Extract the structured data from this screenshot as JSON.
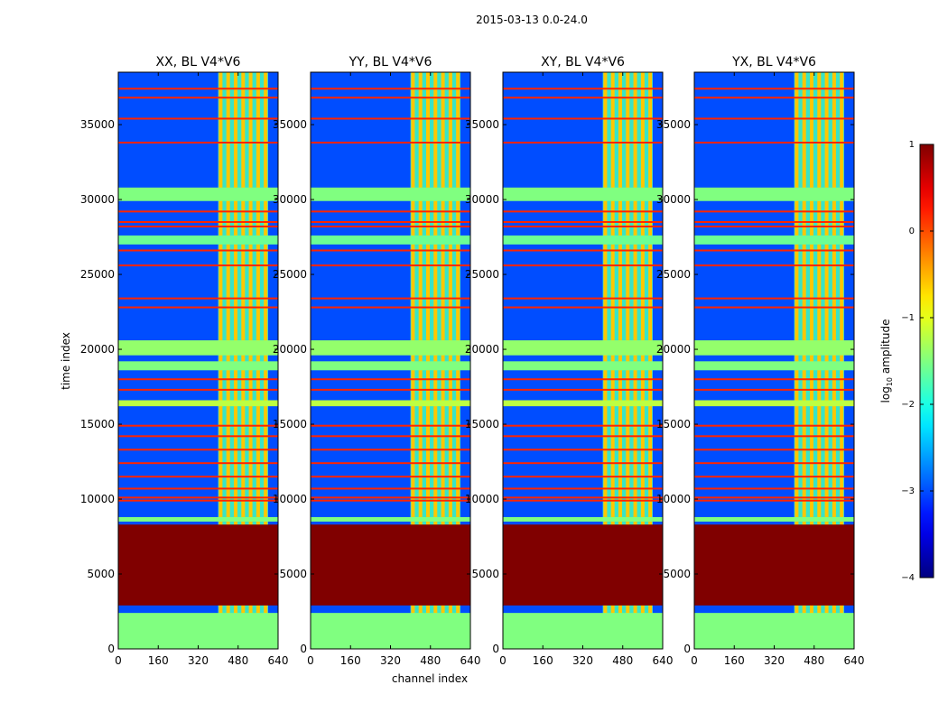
{
  "chart_data": {
    "type": "heatmap",
    "suptitle": "2015-03-13 0.0-24.0",
    "xlabel": "channel index",
    "ylabel": "time index",
    "colorbar_label": "log10 amplitude",
    "colorbar_label_base": "log",
    "colorbar_label_sub": "10",
    "colorbar_label_rest": " amplitude",
    "colormap": "jet",
    "xlim": [
      0,
      640
    ],
    "ylim": [
      0,
      38500
    ],
    "clim": [
      -4,
      1
    ],
    "xticks": [
      0,
      160,
      320,
      480,
      640
    ],
    "yticks": [
      0,
      5000,
      10000,
      15000,
      20000,
      25000,
      30000,
      35000
    ],
    "cbticks": [
      1,
      0,
      -1,
      -2,
      -3,
      -4
    ],
    "cbtick_labels": [
      "1",
      "0",
      "−1",
      "−2",
      "−3",
      "−4"
    ],
    "panels": [
      {
        "title": "XX, BL V4*V6",
        "pol": "XX"
      },
      {
        "title": "YY, BL V4*V6",
        "pol": "YY"
      },
      {
        "title": "XY, BL V4*V6",
        "pol": "XY"
      },
      {
        "title": "YX, BL V4*V6",
        "pol": "YX"
      }
    ],
    "background_level": -3,
    "saturated_block": {
      "time_range": [
        2900,
        8300
      ],
      "value": 1
    },
    "flagged_block_bottom": {
      "time_range": [
        0,
        2400
      ],
      "value": -1.5
    },
    "flagged_rows": [
      {
        "time_range": [
          8500,
          8800
        ],
        "value": -1.5
      },
      {
        "time_range": [
          16200,
          16600
        ],
        "value": -1.2
      },
      {
        "time_range": [
          18600,
          19200
        ],
        "value": -1.5
      },
      {
        "time_range": [
          19600,
          20600
        ],
        "value": -1.4
      },
      {
        "time_range": [
          27000,
          27600
        ],
        "value": -1.6
      },
      {
        "time_range": [
          29900,
          30800
        ],
        "value": -1.5
      }
    ],
    "hot_lines": [
      9900,
      10100,
      10700,
      11500,
      12400,
      13300,
      14200,
      14900,
      17300,
      18000,
      22800,
      23400,
      25600,
      26600,
      28200,
      28500,
      29200,
      33800,
      35400,
      36800,
      37400
    ],
    "bright_channel_band": {
      "channel_range": [
        400,
        600
      ],
      "value": -1.8
    },
    "bright_channel_lines": [
      410,
      440,
      470,
      500,
      530,
      560,
      590
    ]
  }
}
